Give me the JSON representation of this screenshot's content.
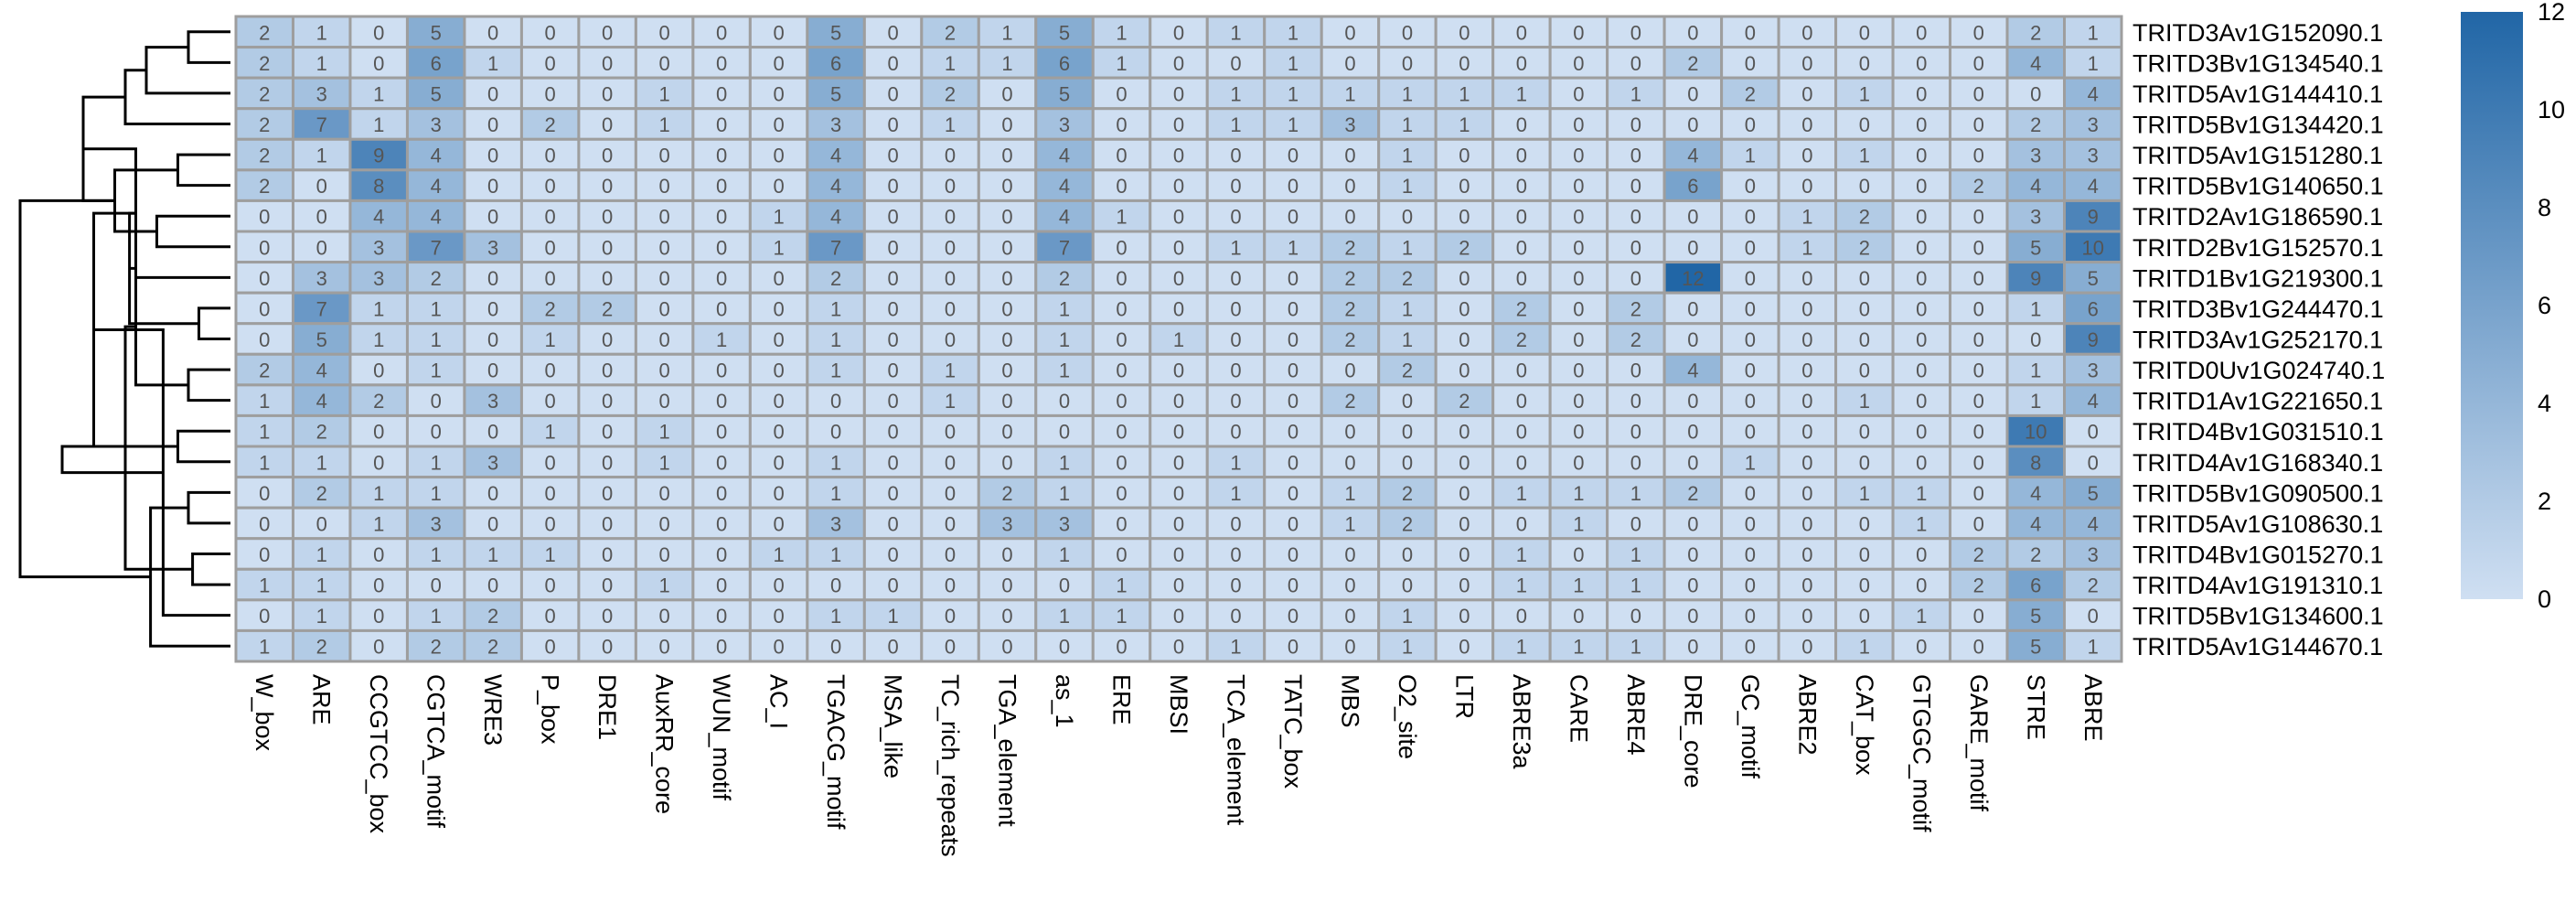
{
  "chart_data": {
    "type": "heatmap",
    "title": "",
    "xlabel": "",
    "ylabel": "",
    "color_scale": {
      "min": 0,
      "max": 12,
      "low_color": "#cfdff2",
      "high_color": "#2166a6",
      "ticks": [
        0,
        2,
        4,
        6,
        8,
        10,
        12
      ]
    },
    "grid_color": "#9e9e9e",
    "columns": [
      "W_box",
      "ARE",
      "CCGTCC_box",
      "CGTCA_motif",
      "WRE3",
      "P_box",
      "DRE1",
      "AuxRR_core",
      "WUN_motif",
      "AC_I",
      "TGACG_motif",
      "MSA_like",
      "TC_rich_repeats",
      "TGA_element",
      "as_1",
      "ERE",
      "MBSI",
      "TCA_element",
      "TATC_box",
      "MBS",
      "O2_site",
      "LTR",
      "ABRE3a",
      "CARE",
      "ABRE4",
      "DRE_core",
      "GC_motif",
      "ABRE2",
      "CAT_box",
      "GTGGC_motif",
      "GARE_motif",
      "STRE",
      "ABRE"
    ],
    "rows": [
      "TRITD3Av1G152090.1",
      "TRITD3Bv1G134540.1",
      "TRITD5Av1G144410.1",
      "TRITD5Bv1G134420.1",
      "TRITD5Av1G151280.1",
      "TRITD5Bv1G140650.1",
      "TRITD2Av1G186590.1",
      "TRITD2Bv1G152570.1",
      "TRITD1Bv1G219300.1",
      "TRITD3Bv1G244470.1",
      "TRITD3Av1G252170.1",
      "TRITD0Uv1G024740.1",
      "TRITD1Av1G221650.1",
      "TRITD4Bv1G031510.1",
      "TRITD4Av1G168340.1",
      "TRITD5Bv1G090500.1",
      "TRITD5Av1G108630.1",
      "TRITD4Bv1G015270.1",
      "TRITD4Av1G191310.1",
      "TRITD5Bv1G134600.1",
      "TRITD5Av1G144670.1"
    ],
    "values": [
      [
        2,
        1,
        0,
        5,
        0,
        0,
        0,
        0,
        0,
        0,
        5,
        0,
        2,
        1,
        5,
        1,
        0,
        1,
        1,
        0,
        0,
        0,
        0,
        0,
        0,
        0,
        0,
        0,
        0,
        0,
        0,
        2,
        1
      ],
      [
        2,
        1,
        0,
        6,
        1,
        0,
        0,
        0,
        0,
        0,
        6,
        0,
        1,
        1,
        6,
        1,
        0,
        0,
        1,
        0,
        0,
        0,
        0,
        0,
        0,
        2,
        0,
        0,
        0,
        0,
        0,
        4,
        1
      ],
      [
        2,
        3,
        1,
        5,
        0,
        0,
        0,
        1,
        0,
        0,
        5,
        0,
        2,
        0,
        5,
        0,
        0,
        1,
        1,
        1,
        1,
        1,
        1,
        0,
        1,
        0,
        2,
        0,
        1,
        0,
        0,
        0,
        4
      ],
      [
        2,
        7,
        1,
        3,
        0,
        2,
        0,
        1,
        0,
        0,
        3,
        0,
        1,
        0,
        3,
        0,
        0,
        1,
        1,
        3,
        1,
        1,
        0,
        0,
        0,
        0,
        0,
        0,
        0,
        0,
        0,
        2,
        3
      ],
      [
        2,
        1,
        9,
        4,
        0,
        0,
        0,
        0,
        0,
        0,
        4,
        0,
        0,
        0,
        4,
        0,
        0,
        0,
        0,
        0,
        1,
        0,
        0,
        0,
        0,
        4,
        1,
        0,
        1,
        0,
        0,
        3,
        3
      ],
      [
        2,
        0,
        8,
        4,
        0,
        0,
        0,
        0,
        0,
        0,
        4,
        0,
        0,
        0,
        4,
        0,
        0,
        0,
        0,
        0,
        1,
        0,
        0,
        0,
        0,
        6,
        0,
        0,
        0,
        0,
        2,
        4,
        4
      ],
      [
        0,
        0,
        4,
        4,
        0,
        0,
        0,
        0,
        0,
        1,
        4,
        0,
        0,
        0,
        4,
        1,
        0,
        0,
        0,
        0,
        0,
        0,
        0,
        0,
        0,
        0,
        0,
        1,
        2,
        0,
        0,
        3,
        9
      ],
      [
        0,
        0,
        3,
        7,
        3,
        0,
        0,
        0,
        0,
        1,
        7,
        0,
        0,
        0,
        7,
        0,
        0,
        1,
        1,
        2,
        1,
        2,
        0,
        0,
        0,
        0,
        0,
        1,
        2,
        0,
        0,
        5,
        10
      ],
      [
        0,
        3,
        3,
        2,
        0,
        0,
        0,
        0,
        0,
        0,
        2,
        0,
        0,
        0,
        2,
        0,
        0,
        0,
        0,
        2,
        2,
        0,
        0,
        0,
        0,
        12,
        0,
        0,
        0,
        0,
        0,
        9,
        5
      ],
      [
        0,
        7,
        1,
        1,
        0,
        2,
        2,
        0,
        0,
        0,
        1,
        0,
        0,
        0,
        1,
        0,
        0,
        0,
        0,
        2,
        1,
        0,
        2,
        0,
        2,
        0,
        0,
        0,
        0,
        0,
        0,
        1,
        6
      ],
      [
        0,
        5,
        1,
        1,
        0,
        1,
        0,
        0,
        1,
        0,
        1,
        0,
        0,
        0,
        1,
        0,
        1,
        0,
        0,
        2,
        1,
        0,
        2,
        0,
        2,
        0,
        0,
        0,
        0,
        0,
        0,
        0,
        9
      ],
      [
        2,
        4,
        0,
        1,
        0,
        0,
        0,
        0,
        0,
        0,
        1,
        0,
        1,
        0,
        1,
        0,
        0,
        0,
        0,
        0,
        2,
        0,
        0,
        0,
        0,
        4,
        0,
        0,
        0,
        0,
        0,
        1,
        3
      ],
      [
        1,
        4,
        2,
        0,
        3,
        0,
        0,
        0,
        0,
        0,
        0,
        0,
        1,
        0,
        0,
        0,
        0,
        0,
        0,
        2,
        0,
        2,
        0,
        0,
        0,
        0,
        0,
        0,
        1,
        0,
        0,
        1,
        4
      ],
      [
        1,
        2,
        0,
        0,
        0,
        1,
        0,
        1,
        0,
        0,
        0,
        0,
        0,
        0,
        0,
        0,
        0,
        0,
        0,
        0,
        0,
        0,
        0,
        0,
        0,
        0,
        0,
        0,
        0,
        0,
        0,
        10,
        0
      ],
      [
        1,
        1,
        0,
        1,
        3,
        0,
        0,
        1,
        0,
        0,
        1,
        0,
        0,
        0,
        1,
        0,
        0,
        1,
        0,
        0,
        0,
        0,
        0,
        0,
        0,
        0,
        1,
        0,
        0,
        0,
        0,
        8,
        0
      ],
      [
        0,
        2,
        1,
        1,
        0,
        0,
        0,
        0,
        0,
        0,
        1,
        0,
        0,
        2,
        1,
        0,
        0,
        1,
        0,
        1,
        2,
        0,
        1,
        1,
        1,
        2,
        0,
        0,
        1,
        1,
        0,
        4,
        5
      ],
      [
        0,
        0,
        1,
        3,
        0,
        0,
        0,
        0,
        0,
        0,
        3,
        0,
        0,
        3,
        3,
        0,
        0,
        0,
        0,
        1,
        2,
        0,
        0,
        1,
        0,
        0,
        0,
        0,
        0,
        1,
        0,
        4,
        4
      ],
      [
        0,
        1,
        0,
        1,
        1,
        1,
        0,
        0,
        0,
        1,
        1,
        0,
        0,
        0,
        1,
        0,
        0,
        0,
        0,
        0,
        0,
        0,
        1,
        0,
        1,
        0,
        0,
        0,
        0,
        0,
        2,
        2,
        3
      ],
      [
        1,
        1,
        0,
        0,
        0,
        0,
        0,
        1,
        0,
        0,
        0,
        0,
        0,
        0,
        0,
        1,
        0,
        0,
        0,
        0,
        0,
        0,
        1,
        1,
        1,
        0,
        0,
        0,
        0,
        0,
        2,
        6,
        2
      ],
      [
        0,
        1,
        0,
        1,
        2,
        0,
        0,
        0,
        0,
        0,
        1,
        1,
        0,
        0,
        1,
        1,
        0,
        0,
        0,
        0,
        1,
        0,
        0,
        0,
        0,
        0,
        0,
        0,
        0,
        1,
        0,
        5,
        0
      ],
      [
        1,
        2,
        0,
        2,
        2,
        0,
        0,
        0,
        0,
        0,
        0,
        0,
        0,
        0,
        0,
        0,
        0,
        1,
        0,
        0,
        1,
        0,
        1,
        1,
        1,
        0,
        0,
        0,
        1,
        0,
        0,
        5,
        1
      ]
    ],
    "dendrogram": {
      "leaf_order": [
        0,
        1,
        2,
        3,
        4,
        5,
        6,
        7,
        8,
        9,
        10,
        11,
        12,
        13,
        14,
        15,
        16,
        17,
        18,
        19,
        20
      ],
      "merges": [
        [
          0,
          1,
          0.2
        ],
        [
          21,
          2,
          0.4
        ],
        [
          22,
          3,
          0.5
        ],
        [
          4,
          5,
          0.25
        ],
        [
          6,
          7,
          0.35
        ],
        [
          24,
          25,
          0.55
        ],
        [
          23,
          26,
          0.7
        ],
        [
          9,
          10,
          0.15
        ],
        [
          8,
          27,
          0.45
        ],
        [
          28,
          29,
          0.48
        ],
        [
          11,
          12,
          0.2
        ],
        [
          13,
          14,
          0.25
        ],
        [
          30,
          31,
          0.45
        ],
        [
          29,
          32,
          0.65
        ],
        [
          15,
          16,
          0.2
        ],
        [
          17,
          18,
          0.18
        ],
        [
          34,
          19,
          0.32
        ],
        [
          35,
          20,
          0.38
        ],
        [
          33,
          36,
          0.5
        ],
        [
          32,
          37,
          0.8
        ],
        [
          26,
          38,
          1.0
        ]
      ]
    }
  }
}
